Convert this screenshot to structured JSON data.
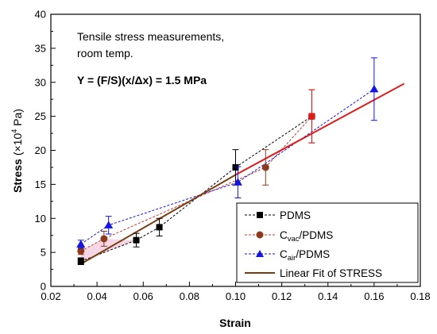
{
  "chart_data": {
    "type": "scatter",
    "xlabel": "Strain",
    "ylabel": {
      "main": "Stress",
      "unit_prefix": "(×10",
      "exp": "4",
      "unit_suffix": " Pa)"
    },
    "xlim": [
      0.02,
      0.18
    ],
    "ylim": [
      0,
      40
    ],
    "xticks": [
      "0.02",
      "0.04",
      "0.06",
      "0.08",
      "0.10",
      "0.12",
      "0.14",
      "0.16",
      "0.18"
    ],
    "xtick_values": [
      0.02,
      0.04,
      0.06,
      0.08,
      0.1,
      0.12,
      0.14,
      0.16,
      0.18
    ],
    "yticks": [
      "0",
      "5",
      "10",
      "15",
      "20",
      "25",
      "30",
      "35",
      "40"
    ],
    "ytick_values": [
      0,
      5,
      10,
      15,
      20,
      25,
      30,
      35,
      40
    ],
    "annotations": {
      "note_line1": "Tensile stress measurements,",
      "note_line2": "room temp.",
      "formula": "Y = (F/S)(x/Δx) = 1.5 MPa"
    },
    "series": [
      {
        "name": "PDMS",
        "marker": "square",
        "color": "#000000",
        "points": [
          {
            "x": 0.033,
            "y": 3.7,
            "err": 0.5
          },
          {
            "x": 0.057,
            "y": 6.8,
            "err": 1.0
          },
          {
            "x": 0.067,
            "y": 8.7,
            "err": 1.3
          },
          {
            "x": 0.1,
            "y": 17.5,
            "err": 2.6
          },
          {
            "x": 0.133,
            "y": 25.0,
            "err": 0.0
          }
        ]
      },
      {
        "name": {
          "base": "C",
          "sub": "vac",
          "rest": "/PDMS"
        },
        "marker": "circle",
        "color": "#8b3a1e",
        "points": [
          {
            "x": 0.033,
            "y": 5.2,
            "err": 0.5
          },
          {
            "x": 0.043,
            "y": 7.0,
            "err": 1.1
          },
          {
            "x": 0.113,
            "y": 17.5,
            "err": 2.6
          },
          {
            "x": 0.133,
            "y": 25.0,
            "err": 3.9
          }
        ]
      },
      {
        "name": {
          "base": "C",
          "sub": "air",
          "rest": "/PDMS"
        },
        "marker": "triangle",
        "color": "#1515e0",
        "points": [
          {
            "x": 0.033,
            "y": 6.2,
            "err": 0.6
          },
          {
            "x": 0.045,
            "y": 9.0,
            "err": 1.3
          },
          {
            "x": 0.101,
            "y": 15.3,
            "err": 2.3
          },
          {
            "x": 0.16,
            "y": 29.0,
            "err": 4.6
          }
        ]
      }
    ],
    "fit": {
      "name": "Linear Fit of STRESS",
      "color": "#7a3b12",
      "x": [
        0.033,
        0.1
      ],
      "y": [
        3.3,
        16.4
      ]
    },
    "extension": {
      "color": "#e01b1b",
      "x": [
        0.1,
        0.173
      ],
      "y": [
        16.4,
        29.8
      ]
    },
    "highlight_point": {
      "x": 0.133,
      "y": 25.0,
      "color": "#e01b1b"
    },
    "legend_position": "bottom-right",
    "grid": false
  }
}
